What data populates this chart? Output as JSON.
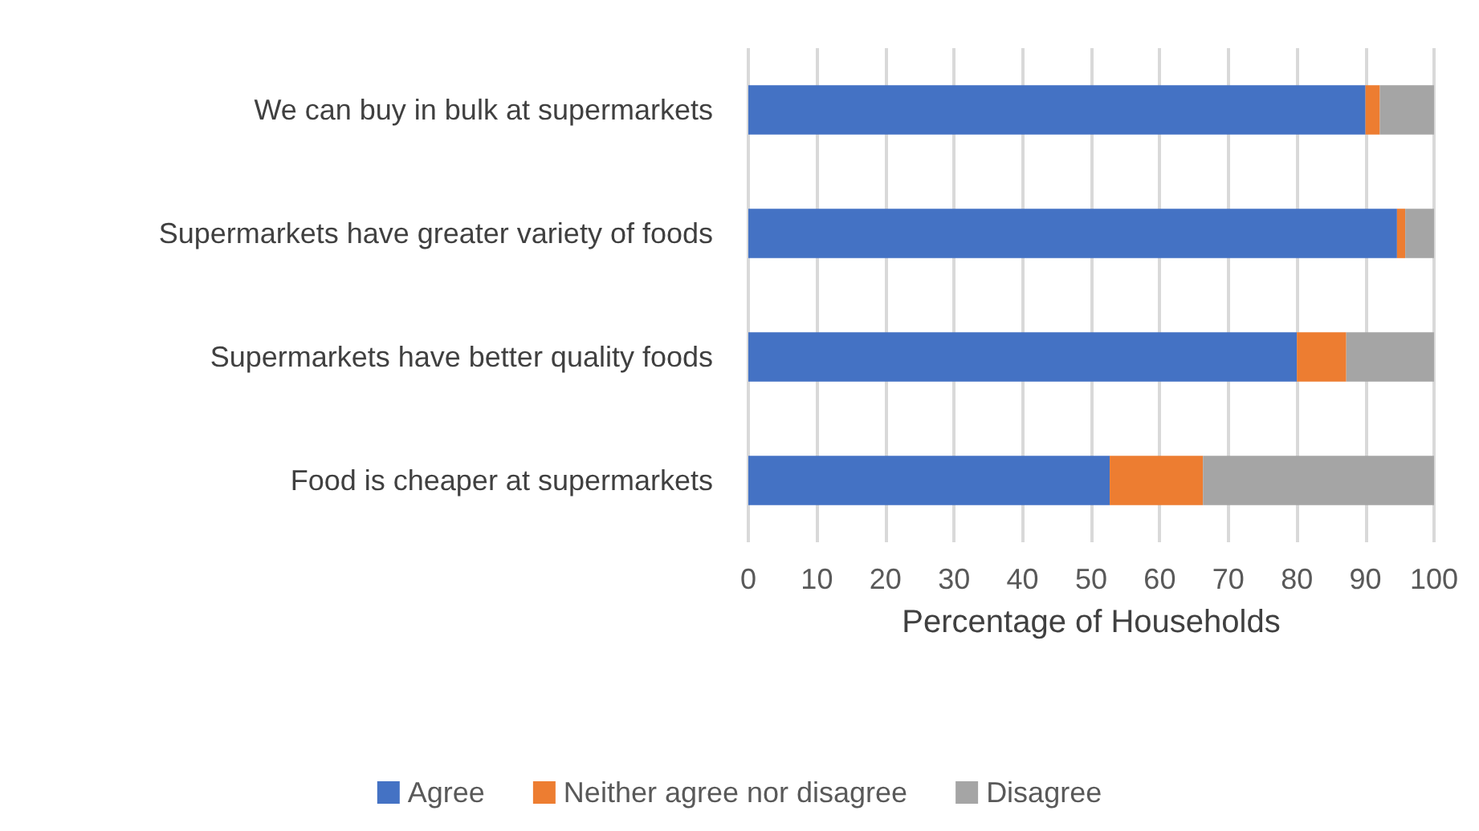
{
  "chart_data": {
    "type": "bar",
    "orientation": "horizontal",
    "stacked": true,
    "categories": [
      "We can buy in bulk at supermarkets",
      "Supermarkets have greater variety of foods",
      "Supermarkets have better quality foods",
      "Food is cheaper at supermarkets"
    ],
    "series": [
      {
        "name": "Agree",
        "color": "#4472c4",
        "values": [
          90.0,
          94.6,
          80.0,
          52.7
        ]
      },
      {
        "name": "Neither agree nor disagree",
        "color": "#ed7d31",
        "values": [
          2.1,
          1.2,
          7.2,
          13.6
        ]
      },
      {
        "name": "Disagree",
        "color": "#a5a5a5",
        "values": [
          7.9,
          4.2,
          12.8,
          33.7
        ]
      }
    ],
    "xlabel": "Percentage of Households",
    "xlim": [
      0,
      100
    ],
    "xticks": [
      0,
      10,
      20,
      30,
      40,
      50,
      60,
      70,
      80,
      90,
      100
    ],
    "grid": "x",
    "legend": "bottom"
  }
}
